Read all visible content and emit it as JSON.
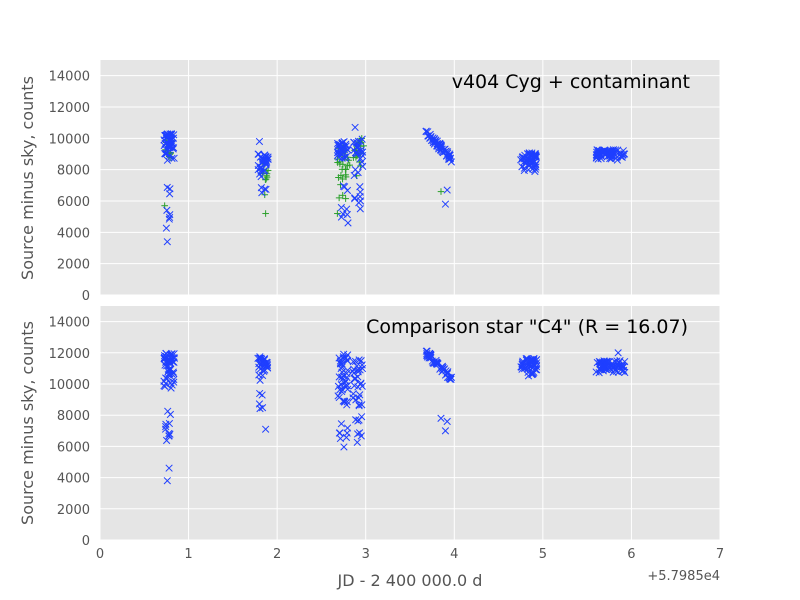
{
  "chart_data": [
    {
      "type": "scatter",
      "title": "v404 Cyg + contaminant",
      "ylabel": "Source minus sky, counts",
      "xlabel": "",
      "xlim": [
        0,
        7
      ],
      "ylim": [
        0,
        15000
      ],
      "xticks": [
        "0",
        "1",
        "2",
        "3",
        "4",
        "5",
        "6",
        "7"
      ],
      "yticks": [
        "0",
        "2000",
        "4000",
        "6000",
        "8000",
        "10000",
        "12000",
        "14000"
      ],
      "grid": true,
      "series": [
        {
          "marker": "x",
          "color": "#1f3fff",
          "clusters": [
            {
              "x": [
                0.72,
                0.84
              ],
              "y": [
                8500,
                10300
              ],
              "n": 50
            },
            {
              "x": [
                0.74,
                0.8
              ],
              "y": [
                3400,
                7200
              ],
              "n": 8
            },
            {
              "x": [
                1.78,
                1.9
              ],
              "y": [
                7500,
                9000
              ],
              "n": 32
            },
            {
              "x": [
                1.82,
                1.88
              ],
              "y": [
                6300,
                7000
              ],
              "n": 4
            },
            {
              "x": [
                2.68,
                2.8
              ],
              "y": [
                8500,
                9800
              ],
              "n": 28
            },
            {
              "x": [
                2.72,
                2.8
              ],
              "y": [
                4600,
                7000
              ],
              "n": 8
            },
            {
              "x": [
                2.85,
                2.97
              ],
              "y": [
                7500,
                10000
              ],
              "n": 25
            },
            {
              "x": [
                2.85,
                2.97
              ],
              "y": [
                5000,
                7000
              ],
              "n": 8
            },
            {
              "x": [
                3.68,
                3.97
              ],
              "y": [
                8300,
                10600
              ],
              "n": 60,
              "trend": "down"
            },
            {
              "x": [
                4.75,
                4.93
              ],
              "y": [
                7800,
                9100
              ],
              "n": 55
            },
            {
              "x": [
                5.6,
                5.93
              ],
              "y": [
                8600,
                9300
              ],
              "n": 70
            }
          ],
          "points": [
            [
              2.88,
              10700
            ],
            [
              0.76,
              3400
            ],
            [
              1.8,
              9800
            ],
            [
              3.9,
              5800
            ],
            [
              3.92,
              6700
            ],
            [
              2.8,
              4600
            ]
          ]
        },
        {
          "marker": "+",
          "color": "#2ca02c",
          "clusters": [
            {
              "x": [
                0.73,
                0.82
              ],
              "y": [
                8000,
                10000
              ],
              "n": 15
            },
            {
              "x": [
                1.82,
                1.9
              ],
              "y": [
                7000,
                8500
              ],
              "n": 10
            },
            {
              "x": [
                2.68,
                2.82
              ],
              "y": [
                6000,
                9500
              ],
              "n": 30
            },
            {
              "x": [
                2.86,
                2.98
              ],
              "y": [
                7500,
                10000
              ],
              "n": 20
            }
          ],
          "points": [
            [
              0.73,
              5700
            ],
            [
              1.86,
              6400
            ],
            [
              1.87,
              5200
            ],
            [
              2.68,
              5200
            ],
            [
              2.7,
              6200
            ],
            [
              3.85,
              6600
            ]
          ]
        }
      ]
    },
    {
      "type": "scatter",
      "title": "Comparison star \"C4\" (R = 16.07)",
      "ylabel": "Source minus sky, counts",
      "xlabel": "JD - 2 400 000.0 d",
      "x_offset_label": "+5.7985e4",
      "xlim": [
        0,
        7
      ],
      "ylim": [
        0,
        15000
      ],
      "xticks": [
        "0",
        "1",
        "2",
        "3",
        "4",
        "5",
        "6",
        "7"
      ],
      "yticks": [
        "0",
        "2000",
        "4000",
        "6000",
        "8000",
        "10000",
        "12000",
        "14000"
      ],
      "grid": true,
      "series": [
        {
          "marker": "x",
          "color": "#1f3fff",
          "clusters": [
            {
              "x": [
                0.72,
                0.84
              ],
              "y": [
                9500,
                12000
              ],
              "n": 55
            },
            {
              "x": [
                0.74,
                0.8
              ],
              "y": [
                3800,
                8500
              ],
              "n": 12
            },
            {
              "x": [
                1.78,
                1.9
              ],
              "y": [
                10200,
                11800
              ],
              "n": 32
            },
            {
              "x": [
                1.8,
                1.88
              ],
              "y": [
                7100,
                9500
              ],
              "n": 5
            },
            {
              "x": [
                2.68,
                2.8
              ],
              "y": [
                8000,
                12000
              ],
              "n": 40
            },
            {
              "x": [
                2.7,
                2.8
              ],
              "y": [
                5500,
                7500
              ],
              "n": 8
            },
            {
              "x": [
                2.85,
                2.97
              ],
              "y": [
                8500,
                11600
              ],
              "n": 30
            },
            {
              "x": [
                2.85,
                2.97
              ],
              "y": [
                6000,
                8000
              ],
              "n": 8
            },
            {
              "x": [
                3.68,
                3.97
              ],
              "y": [
                10000,
                12200
              ],
              "n": 60,
              "trend": "down"
            },
            {
              "x": [
                4.75,
                4.93
              ],
              "y": [
                10500,
                11700
              ],
              "n": 55
            },
            {
              "x": [
                5.6,
                5.93
              ],
              "y": [
                10700,
                11500
              ],
              "n": 70
            }
          ],
          "points": [
            [
              0.76,
              3800
            ],
            [
              1.87,
              7100
            ],
            [
              3.85,
              7800
            ],
            [
              3.9,
              7000
            ],
            [
              3.92,
              7600
            ],
            [
              5.85,
              12000
            ]
          ]
        }
      ]
    }
  ]
}
